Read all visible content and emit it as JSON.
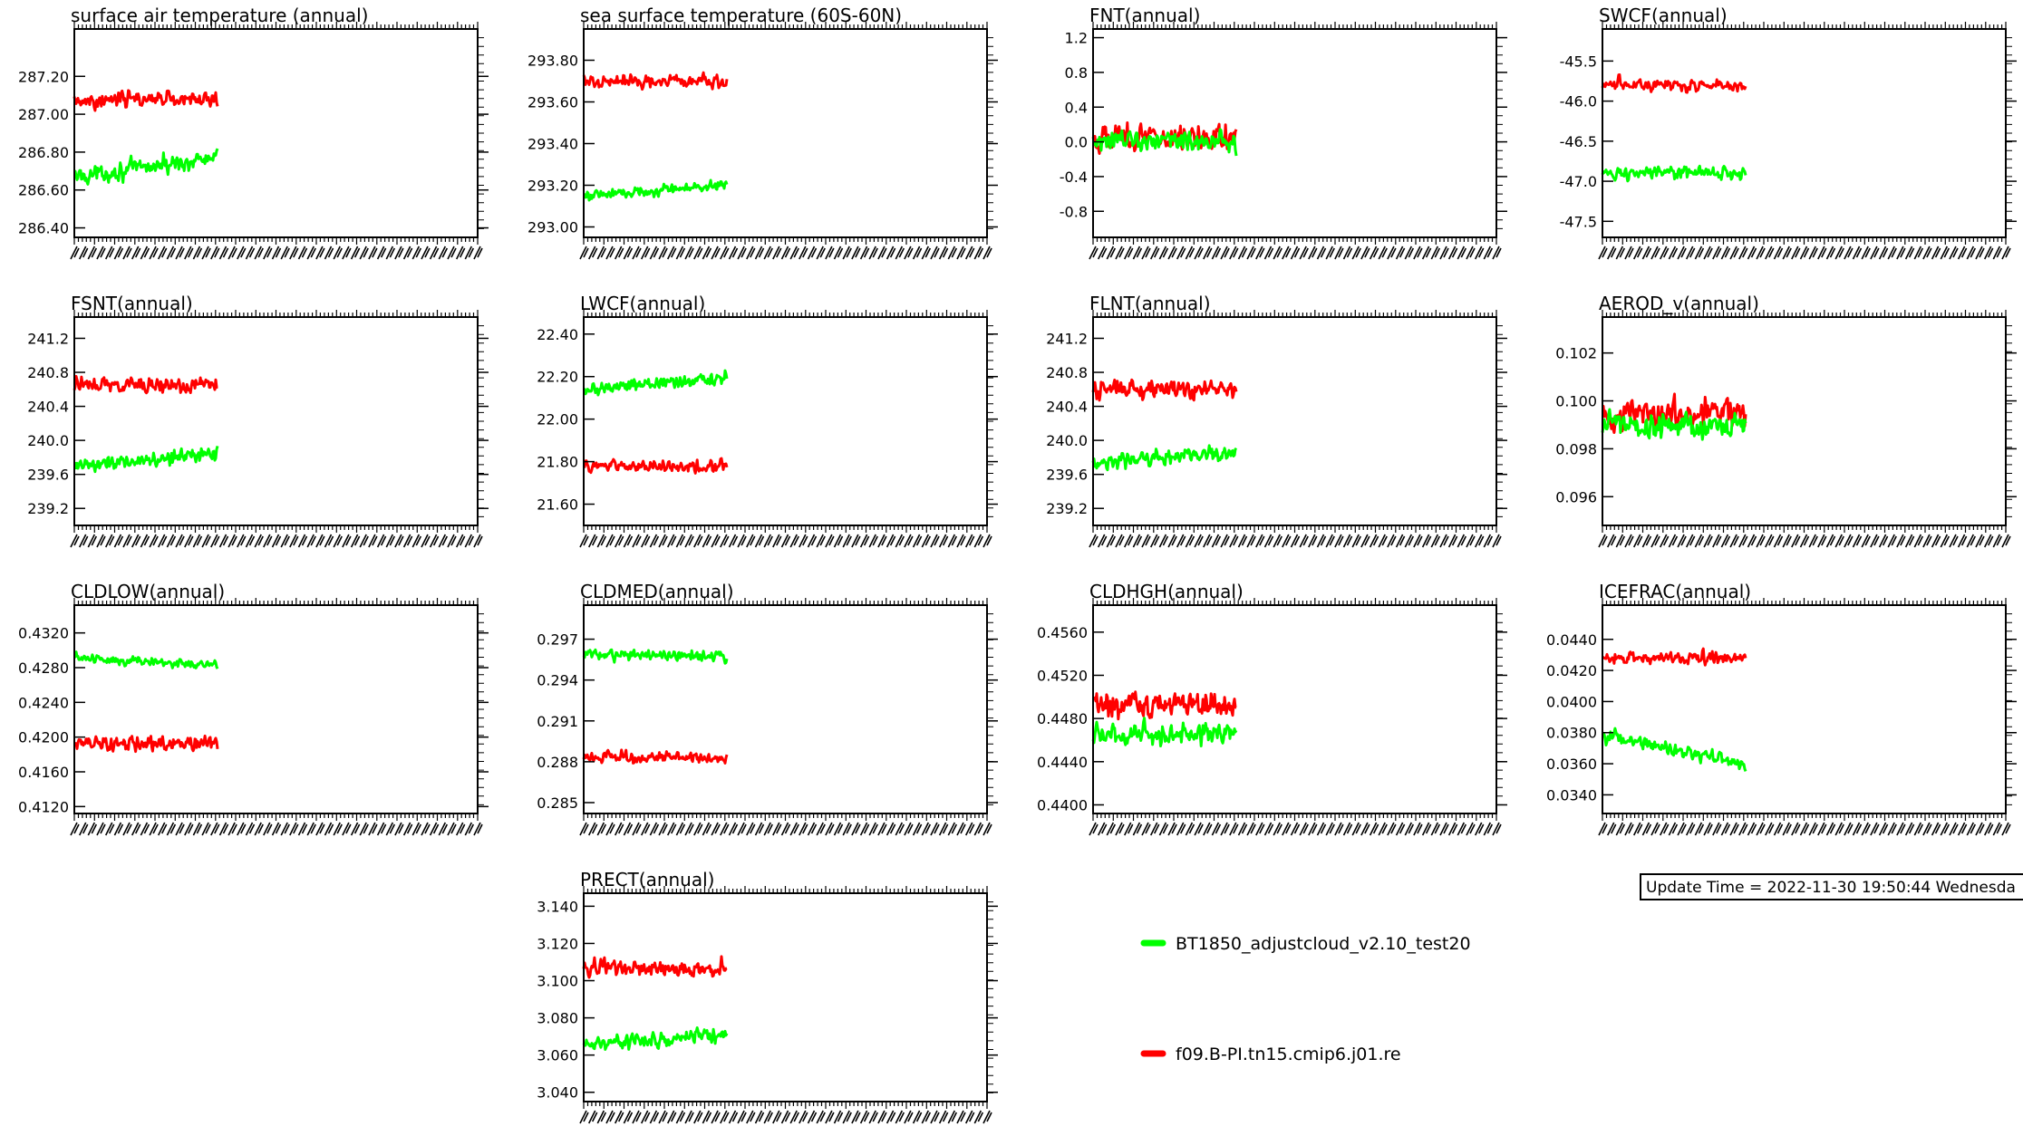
{
  "legend": {
    "series_a": {
      "label": "BT1850_adjustcloud_v2.10_test20",
      "color": "#00ff00"
    },
    "series_b": {
      "label": "f09.B-PI.tn15.cmip6.j01.re",
      "color": "#ff0000"
    }
  },
  "update_stamp": "Update Time = 2022-11-30 19:50:44 Wednesda",
  "chart_data": [
    {
      "type": "line",
      "title": "surface air temperature (annual)",
      "yticks": [
        "287.20",
        "287.00",
        "286.80",
        "286.60",
        "286.40"
      ],
      "ylim": [
        286.35,
        287.45
      ],
      "series": [
        {
          "color": "#00ff00",
          "mean": 286.67,
          "amp": 0.09,
          "trend": 0.1
        },
        {
          "color": "#ff0000",
          "mean": 287.08,
          "amp": 0.08,
          "trend": 0.0
        }
      ]
    },
    {
      "type": "line",
      "title": "sea surface temperature (60S-60N)",
      "yticks": [
        "293.80",
        "293.60",
        "293.40",
        "293.20",
        "293.00"
      ],
      "ylim": [
        292.95,
        293.95
      ],
      "series": [
        {
          "color": "#00ff00",
          "mean": 293.15,
          "amp": 0.05,
          "trend": 0.05
        },
        {
          "color": "#ff0000",
          "mean": 293.7,
          "amp": 0.06,
          "trend": 0.0
        }
      ]
    },
    {
      "type": "line",
      "title": "FNT(annual)",
      "yticks": [
        "1.2",
        "0.8",
        "0.4",
        "0.0",
        "-0.4",
        "-0.8"
      ],
      "ylim": [
        -1.1,
        1.3
      ],
      "series": [
        {
          "color": "#ff0000",
          "mean": 0.05,
          "amp": 0.32,
          "trend": 0.0
        },
        {
          "color": "#00ff00",
          "mean": 0.0,
          "amp": 0.22,
          "trend": 0.0
        }
      ]
    },
    {
      "type": "line",
      "title": "SWCF(annual)",
      "yticks": [
        "-45.5",
        "-46.0",
        "-46.5",
        "-47.0",
        "-47.5"
      ],
      "ylim": [
        -47.7,
        -45.1
      ],
      "series": [
        {
          "color": "#00ff00",
          "mean": -46.9,
          "amp": 0.15,
          "trend": 0.0
        },
        {
          "color": "#ff0000",
          "mean": -45.8,
          "amp": 0.15,
          "trend": 0.0
        }
      ]
    },
    {
      "type": "line",
      "title": "FSNT(annual)",
      "yticks": [
        "241.2",
        "240.8",
        "240.4",
        "240.0",
        "239.6",
        "239.2"
      ],
      "ylim": [
        239.0,
        241.45
      ],
      "series": [
        {
          "color": "#00ff00",
          "mean": 239.7,
          "amp": 0.18,
          "trend": 0.15
        },
        {
          "color": "#ff0000",
          "mean": 240.65,
          "amp": 0.17,
          "trend": 0.0
        }
      ]
    },
    {
      "type": "line",
      "title": "LWCF(annual)",
      "yticks": [
        "22.40",
        "22.20",
        "22.00",
        "21.80",
        "21.60"
      ],
      "ylim": [
        21.5,
        22.48
      ],
      "series": [
        {
          "color": "#00ff00",
          "mean": 22.14,
          "amp": 0.06,
          "trend": 0.05
        },
        {
          "color": "#ff0000",
          "mean": 21.78,
          "amp": 0.06,
          "trend": 0.0
        }
      ]
    },
    {
      "type": "line",
      "title": "FLNT(annual)",
      "yticks": [
        "241.2",
        "240.8",
        "240.4",
        "240.0",
        "239.6",
        "239.2"
      ],
      "ylim": [
        239.0,
        241.45
      ],
      "series": [
        {
          "color": "#00ff00",
          "mean": 239.75,
          "amp": 0.17,
          "trend": 0.1
        },
        {
          "color": "#ff0000",
          "mean": 240.6,
          "amp": 0.2,
          "trend": 0.0
        }
      ]
    },
    {
      "type": "line",
      "title": "AEROD_v(annual)",
      "yticks": [
        "0.102",
        "0.100",
        "0.098",
        "0.096"
      ],
      "ylim": [
        0.0948,
        0.1035
      ],
      "series": [
        {
          "color": "#ff0000",
          "mean": 0.0995,
          "amp": 0.0012,
          "trend": 0.0
        },
        {
          "color": "#00ff00",
          "mean": 0.099,
          "amp": 0.0011,
          "trend": 0.0
        }
      ]
    },
    {
      "type": "line",
      "title": "CLDLOW(annual)",
      "yticks": [
        "0.4320",
        "0.4280",
        "0.4240",
        "0.4200",
        "0.4160",
        "0.4120"
      ],
      "ylim": [
        0.4112,
        0.4352
      ],
      "series": [
        {
          "color": "#00ff00",
          "mean": 0.4292,
          "amp": 0.0012,
          "trend": -0.001
        },
        {
          "color": "#ff0000",
          "mean": 0.4193,
          "amp": 0.0017,
          "trend": 0.0
        }
      ]
    },
    {
      "type": "line",
      "title": "CLDMED(annual)",
      "yticks": [
        "0.297",
        "0.294",
        "0.291",
        "0.288",
        "0.285"
      ],
      "ylim": [
        0.2842,
        0.2995
      ],
      "series": [
        {
          "color": "#00ff00",
          "mean": 0.2958,
          "amp": 0.0008,
          "trend": 0.0
        },
        {
          "color": "#ff0000",
          "mean": 0.2883,
          "amp": 0.0009,
          "trend": 0.0
        }
      ]
    },
    {
      "type": "line",
      "title": "CLDHGH(annual)",
      "yticks": [
        "0.4560",
        "0.4520",
        "0.4480",
        "0.4440",
        "0.4400"
      ],
      "ylim": [
        0.4392,
        0.4585
      ],
      "series": [
        {
          "color": "#ff0000",
          "mean": 0.4492,
          "amp": 0.0022,
          "trend": 0.0
        },
        {
          "color": "#00ff00",
          "mean": 0.4465,
          "amp": 0.0018,
          "trend": 0.0
        }
      ]
    },
    {
      "type": "line",
      "title": "ICEFRAC(annual)",
      "yticks": [
        "0.0440",
        "0.0420",
        "0.0400",
        "0.0380",
        "0.0360",
        "0.0340"
      ],
      "ylim": [
        0.0328,
        0.0462
      ],
      "series": [
        {
          "color": "#00ff00",
          "mean": 0.0378,
          "amp": 0.0009,
          "trend": -0.0018
        },
        {
          "color": "#ff0000",
          "mean": 0.0428,
          "amp": 0.0008,
          "trend": 0.0
        }
      ]
    },
    {
      "type": "line",
      "title": "PRECT(annual)",
      "yticks": [
        "3.140",
        "3.120",
        "3.100",
        "3.080",
        "3.060",
        "3.040"
      ],
      "ylim": [
        3.035,
        3.147
      ],
      "series": [
        {
          "color": "#00ff00",
          "mean": 3.066,
          "amp": 0.008,
          "trend": 0.005
        },
        {
          "color": "#ff0000",
          "mean": 3.107,
          "amp": 0.009,
          "trend": 0.0
        }
      ]
    }
  ]
}
